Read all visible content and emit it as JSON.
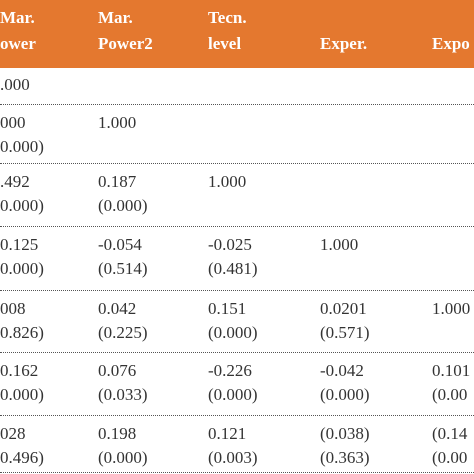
{
  "table": {
    "header": [
      [
        "Mar.",
        "ower"
      ],
      [
        "Mar.",
        "Power2"
      ],
      [
        "Tecn.",
        "level"
      ],
      [
        "Exper."
      ],
      [
        "Expo"
      ]
    ],
    "rows": [
      [
        [
          ".000"
        ]
      ],
      [
        [
          "000",
          "0.000)"
        ],
        [
          "1.000"
        ]
      ],
      [
        [
          ".492",
          "0.000)"
        ],
        [
          "0.187",
          "(0.000)"
        ],
        [
          "1.000"
        ]
      ],
      [
        [
          "0.125",
          "0.000)"
        ],
        [
          "-0.054",
          "(0.514)"
        ],
        [
          "-0.025",
          "(0.481)"
        ],
        [
          "1.000"
        ]
      ],
      [
        [
          "008",
          "0.826)"
        ],
        [
          "0.042",
          "(0.225)"
        ],
        [
          "0.151",
          "(0.000)"
        ],
        [
          "0.0201",
          "(0.571)"
        ],
        [
          "1.000"
        ]
      ],
      [
        [
          "0.162",
          "0.000)"
        ],
        [
          "0.076",
          "(0.033)"
        ],
        [
          "-0.226",
          "(0.000)"
        ],
        [
          "-0.042",
          "(0.000)"
        ],
        [
          "0.101",
          "(0.00"
        ]
      ],
      [
        [
          "028",
          "0.496)"
        ],
        [
          "0.198",
          "(0.000)"
        ],
        [
          "0.121",
          "(0.003)"
        ],
        [
          "(0.038)",
          "(0.363)"
        ],
        [
          "(0.14",
          "(0.00"
        ]
      ]
    ]
  }
}
